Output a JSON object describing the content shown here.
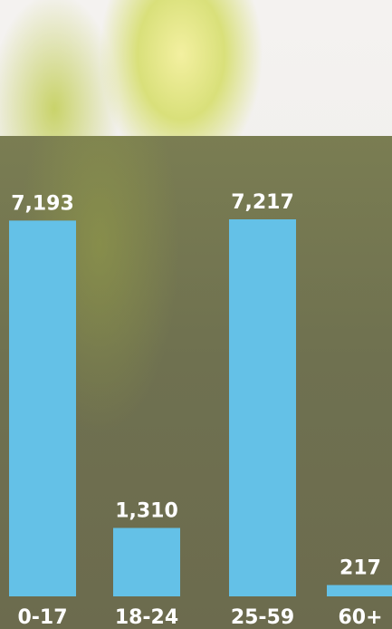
{
  "chart_data": {
    "type": "bar",
    "categories": [
      "0-17",
      "18-24",
      "25-59",
      "60+"
    ],
    "values": [
      7193,
      1310,
      7217,
      217
    ],
    "value_labels": [
      "7,193",
      "1,310",
      "7,217",
      "217"
    ],
    "color": "#64c1e7"
  }
}
